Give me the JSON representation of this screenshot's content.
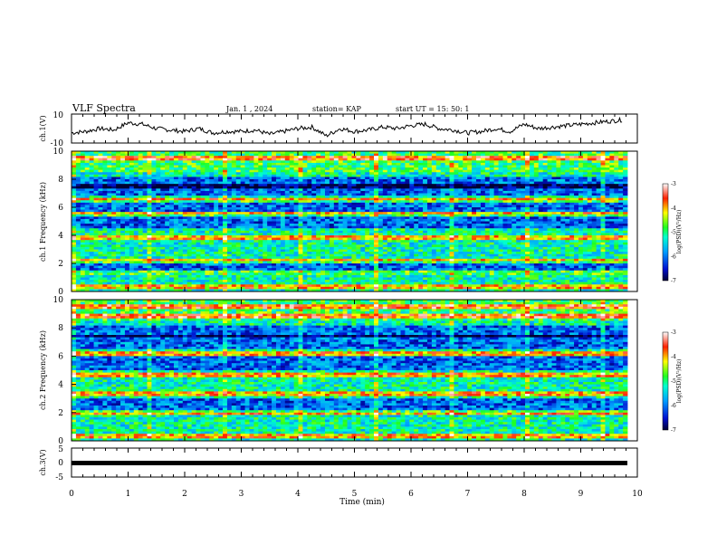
{
  "header": {
    "title": "VLF Spectra",
    "date": "Jan. 1 , 2024",
    "station": "station= KAP",
    "start_time": "start  UT =  15: 50: 1"
  },
  "chart_data": [
    {
      "type": "line",
      "panel": "ch1-waveform",
      "ylabel": "ch.1(V)",
      "ylim": [
        -10,
        10
      ],
      "yticks": [
        "10",
        "-10"
      ],
      "x": [
        0,
        0.25,
        0.5,
        0.75,
        1,
        1.25,
        1.5,
        1.75,
        2,
        2.25,
        2.5,
        2.75,
        3,
        3.25,
        3.5,
        3.75,
        4,
        4.25,
        4.5,
        4.75,
        5,
        5.25,
        5.5,
        5.75,
        6,
        6.25,
        6.5,
        6.75,
        7,
        7.25,
        7.5,
        7.75,
        8,
        8.25,
        8.5,
        8.75,
        9,
        9.25,
        9.5,
        9.75
      ],
      "y": [
        -3,
        -2,
        0,
        -1,
        4,
        3,
        0,
        -1,
        -2,
        0,
        -3,
        -2,
        -2,
        -1,
        -4,
        -2,
        0,
        1,
        -5,
        0,
        -2,
        -1,
        1,
        0,
        2,
        3,
        0,
        -1,
        -3,
        -2,
        0,
        -2,
        3,
        0,
        1,
        2,
        3,
        4,
        5,
        6
      ],
      "line_color": "#000000"
    },
    {
      "type": "heatmap",
      "panel": "ch1-spectrogram",
      "ylabel": "ch.1 Frequency (kHz)",
      "ylim": [
        0,
        10
      ],
      "yticks": [
        "0",
        "2",
        "4",
        "6",
        "8",
        "10"
      ],
      "xlim": [
        0,
        9.83
      ],
      "z_description": "log(PSD)",
      "colorbar": {
        "label": "log(PSD)(V²/Hz)",
        "range": [
          -7,
          -3
        ],
        "ticks": [
          "-3",
          "-4",
          "-5",
          "-6",
          "-7"
        ]
      },
      "bands_khz": [
        0.3,
        1.3,
        2.2,
        3.8,
        5.5,
        6.5,
        9.5
      ],
      "low_power_bands_khz": [
        5.0,
        6.1,
        7.3,
        7.7,
        1.7
      ]
    },
    {
      "type": "heatmap",
      "panel": "ch2-spectrogram",
      "ylabel": "ch.2 Frequency (kHz)",
      "ylim": [
        0,
        10
      ],
      "yticks": [
        "0",
        "2",
        "4",
        "6",
        "8",
        "10"
      ],
      "xlim": [
        0,
        9.83
      ],
      "z_description": "log(PSD)",
      "colorbar": {
        "label": "log(PSD)(V²/Hz)",
        "range": [
          -7,
          -3
        ],
        "ticks": [
          "-3",
          "-4",
          "-5",
          "-6",
          "-7"
        ]
      },
      "bands_khz": [
        0.3,
        2.0,
        3.3,
        4.7,
        6.2,
        8.8,
        9.5
      ],
      "low_power_bands_khz": [
        2.5,
        5.5,
        7.0,
        7.8
      ]
    },
    {
      "type": "line",
      "panel": "ch3-waveform",
      "ylabel": "ch.3(V)",
      "ylim": [
        -5,
        5
      ],
      "yticks": [
        "5",
        "0",
        "-5"
      ],
      "x": [
        0,
        9.83
      ],
      "y": [
        0,
        0
      ],
      "line_color": "#000000"
    }
  ],
  "x_axis": {
    "label": "Time (min)",
    "ticks": [
      "0",
      "1",
      "2",
      "3",
      "4",
      "5",
      "6",
      "7",
      "8",
      "9",
      "10"
    ],
    "xlim": [
      0,
      10
    ]
  }
}
